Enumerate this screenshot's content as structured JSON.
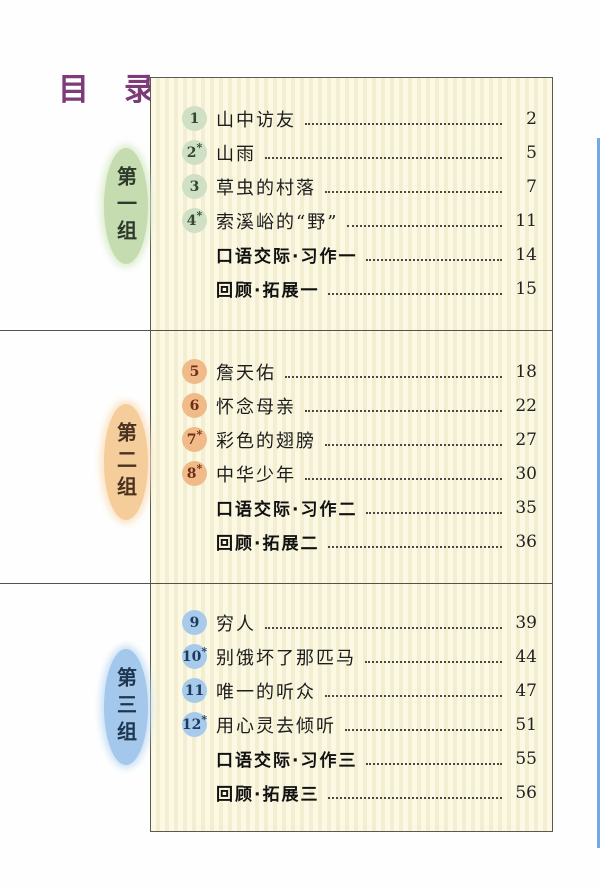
{
  "page": {
    "title": "目　录"
  },
  "palette": {
    "title_color": "#7d3b7a",
    "box_background": "#faf7de",
    "box_border": "#5b5a4f",
    "divider_color": "#55544c",
    "edge_strip_color": "#74a9e9",
    "dot_color": "#4a4a45"
  },
  "groups": [
    {
      "label": "第一组",
      "oval_color": "#c4dcb0",
      "oval_glow": "#d9ebc9",
      "label_color": "#2e3a2c",
      "circle_bg": "#cfe0c5",
      "number_color": "#314a33",
      "entries": [
        {
          "num": "1",
          "star": "",
          "title": "山中访友",
          "page": "2",
          "bold": false
        },
        {
          "num": "2",
          "star": "*",
          "title": "山雨",
          "page": "5",
          "bold": false
        },
        {
          "num": "3",
          "star": "",
          "title": "草虫的村落",
          "page": "7",
          "bold": false
        },
        {
          "num": "4",
          "star": "*",
          "title": "索溪峪的“野”",
          "page": "11",
          "bold": false
        },
        {
          "num": "",
          "star": "",
          "title": "口语交际·习作一",
          "page": "14",
          "bold": true
        },
        {
          "num": "",
          "star": "",
          "title": "回顾·拓展一",
          "page": "15",
          "bold": true
        }
      ]
    },
    {
      "label": "第二组",
      "oval_color": "#f5cd9b",
      "oval_glow": "#fadfbc",
      "label_color": "#4a3220",
      "circle_bg": "#f1ba89",
      "number_color": "#6e2f1a",
      "entries": [
        {
          "num": "5",
          "star": "",
          "title": "詹天佑",
          "page": "18",
          "bold": false
        },
        {
          "num": "6",
          "star": "",
          "title": "怀念母亲",
          "page": "22",
          "bold": false
        },
        {
          "num": "7",
          "star": "*",
          "title": "彩色的翅膀",
          "page": "27",
          "bold": false
        },
        {
          "num": "8",
          "star": "*",
          "title": "中华少年",
          "page": "30",
          "bold": false
        },
        {
          "num": "",
          "star": "",
          "title": "口语交际·习作二",
          "page": "35",
          "bold": true
        },
        {
          "num": "",
          "star": "",
          "title": "回顾·拓展二",
          "page": "36",
          "bold": true
        }
      ]
    },
    {
      "label": "第三组",
      "oval_color": "#a3c8ec",
      "oval_glow": "#c3dcf4",
      "label_color": "#1e3650",
      "circle_bg": "#a8cbec",
      "number_color": "#1e3a5e",
      "entries": [
        {
          "num": "9",
          "star": "",
          "title": "穷人",
          "page": "39",
          "bold": false
        },
        {
          "num": "10",
          "star": "*",
          "title": "别饿坏了那匹马",
          "page": "44",
          "bold": false
        },
        {
          "num": "11",
          "star": "",
          "title": "唯一的听众",
          "page": "47",
          "bold": false
        },
        {
          "num": "12",
          "star": "*",
          "title": "用心灵去倾听",
          "page": "51",
          "bold": false
        },
        {
          "num": "",
          "star": "",
          "title": "口语交际·习作三",
          "page": "55",
          "bold": true
        },
        {
          "num": "",
          "star": "",
          "title": "回顾·拓展三",
          "page": "56",
          "bold": true
        }
      ]
    }
  ]
}
